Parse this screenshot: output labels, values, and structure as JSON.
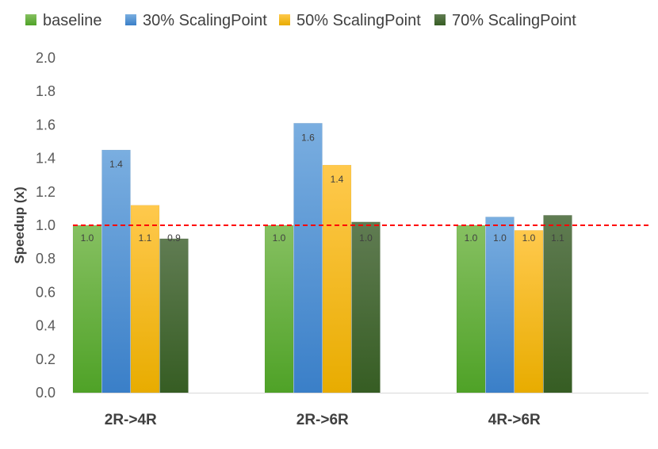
{
  "chart_data": {
    "type": "bar",
    "categories": [
      "2R->4R",
      "2R->6R",
      "4R->6R"
    ],
    "series": [
      {
        "name": "baseline",
        "values": [
          1.0,
          1.0,
          1.0
        ],
        "labels": [
          "1.0",
          "1.0",
          "1.0"
        ],
        "color_top": "#86c061",
        "color_bottom": "#4fa227"
      },
      {
        "name": "30% ScalingPoint",
        "values": [
          1.45,
          1.61,
          1.05
        ],
        "labels": [
          "1.4",
          "1.6",
          "1.0"
        ],
        "color_top": "#7aaee0",
        "color_bottom": "#3a7fc8"
      },
      {
        "name": "50% ScalingPoint",
        "values": [
          1.12,
          1.36,
          0.97
        ],
        "labels": [
          "1.1",
          "1.4",
          "1.0"
        ],
        "color_top": "#ffc94d",
        "color_bottom": "#e8ac00"
      },
      {
        "name": "70% ScalingPoint",
        "values": [
          0.92,
          1.02,
          1.06
        ],
        "labels": [
          "0.9",
          "1.0",
          "1.1"
        ],
        "color_top": "#607c52",
        "color_bottom": "#365d23"
      }
    ],
    "ylabel": "Speedup (x)",
    "xlabel": "",
    "ylim": [
      0,
      2.0
    ],
    "yticks": [
      "0.0",
      "0.2",
      "0.4",
      "0.6",
      "0.8",
      "1.0",
      "1.2",
      "1.4",
      "1.6",
      "1.8",
      "2.0"
    ],
    "reference_line": {
      "value": 1.0,
      "color": "#ff0000",
      "style": "dashed"
    },
    "legend_position": "top",
    "grid": false
  }
}
